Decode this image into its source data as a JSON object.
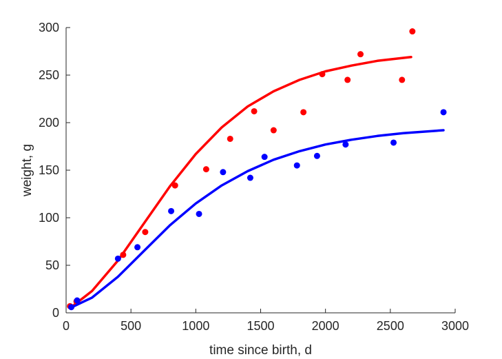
{
  "chart_data": {
    "type": "scatter",
    "title": "",
    "xlabel": "time since birth, d",
    "ylabel": "weight, g",
    "xlim": [
      0,
      3000
    ],
    "ylim": [
      0,
      300
    ],
    "xticks": [
      0,
      500,
      1000,
      1500,
      2000,
      2500,
      3000
    ],
    "yticks": [
      0,
      50,
      100,
      150,
      200,
      250,
      300
    ],
    "grid": false,
    "legend": "none",
    "colors": {
      "red": "#ff0000",
      "blue": "#0000ff",
      "axis": "#262626"
    },
    "series": [
      {
        "color": "#ff0000",
        "points": [
          [
            30,
            7
          ],
          [
            80,
            12
          ],
          [
            440,
            61
          ],
          [
            610,
            85
          ],
          [
            840,
            134
          ],
          [
            1080,
            151
          ],
          [
            1265,
            183
          ],
          [
            1450,
            212
          ],
          [
            1600,
            192
          ],
          [
            1830,
            211
          ],
          [
            1975,
            251
          ],
          [
            2170,
            245
          ],
          [
            2270,
            272
          ],
          [
            2590,
            245
          ],
          [
            2670,
            296
          ]
        ],
        "fit": [
          [
            50,
            7
          ],
          [
            200,
            23
          ],
          [
            400,
            55
          ],
          [
            600,
            94
          ],
          [
            800,
            133
          ],
          [
            1000,
            167
          ],
          [
            1200,
            195
          ],
          [
            1400,
            217
          ],
          [
            1600,
            233
          ],
          [
            1800,
            245
          ],
          [
            2000,
            254
          ],
          [
            2200,
            260
          ],
          [
            2400,
            265
          ],
          [
            2660,
            269
          ]
        ]
      },
      {
        "color": "#0000ff",
        "points": [
          [
            40,
            6
          ],
          [
            85,
            13
          ],
          [
            400,
            57
          ],
          [
            550,
            69
          ],
          [
            810,
            107
          ],
          [
            1025,
            104
          ],
          [
            1210,
            148
          ],
          [
            1420,
            142
          ],
          [
            1530,
            164
          ],
          [
            1780,
            155
          ],
          [
            1935,
            165
          ],
          [
            2155,
            177
          ],
          [
            2525,
            179
          ],
          [
            2910,
            211
          ]
        ],
        "fit": [
          [
            30,
            5
          ],
          [
            200,
            16
          ],
          [
            400,
            38
          ],
          [
            600,
            65
          ],
          [
            800,
            92
          ],
          [
            1000,
            115
          ],
          [
            1200,
            134
          ],
          [
            1400,
            149
          ],
          [
            1600,
            161
          ],
          [
            1800,
            170
          ],
          [
            2000,
            177
          ],
          [
            2200,
            182
          ],
          [
            2400,
            186
          ],
          [
            2600,
            189
          ],
          [
            2910,
            192
          ]
        ]
      }
    ]
  }
}
